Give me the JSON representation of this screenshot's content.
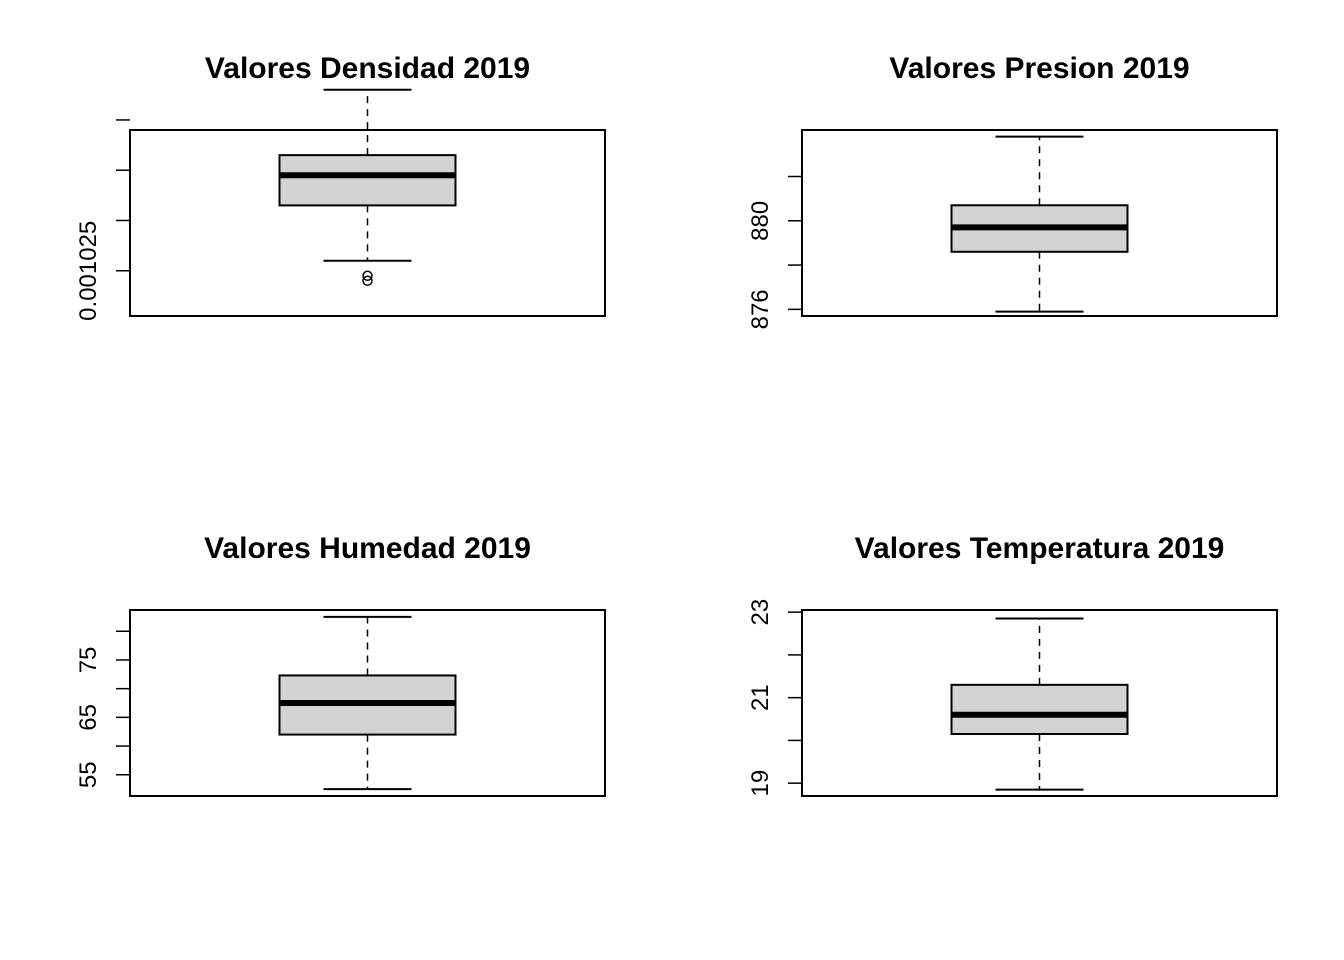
{
  "colors": {
    "box_fill": "#d3d3d3",
    "ink": "#000000",
    "background": "#ffffff"
  },
  "chart_data": [
    {
      "type": "boxplot",
      "title": "Valores Densidad 2019",
      "xlabel": "",
      "ylabel": "",
      "ylim": [
        0.0010241,
        0.0010278
      ],
      "yticks": [
        0.001025,
        0.001026,
        0.001027,
        0.001028
      ],
      "ytick_labels": [
        "0.001025",
        "",
        "",
        ""
      ],
      "whisker_low": 0.0010252,
      "q1": 0.0010263,
      "median": 0.0010269,
      "q3": 0.0010273,
      "whisker_high": 0.0010286,
      "outliers": [
        0.0010249,
        0.0010248
      ],
      "grid": false
    },
    {
      "type": "boxplot",
      "title": "Valores Presion 2019",
      "xlabel": "",
      "ylabel": "",
      "ylim": [
        875.7,
        884.1
      ],
      "yticks": [
        876,
        878,
        880,
        882
      ],
      "ytick_labels": [
        "876",
        "",
        "880",
        ""
      ],
      "whisker_low": 875.9,
      "q1": 878.6,
      "median": 879.7,
      "q3": 880.7,
      "whisker_high": 883.8,
      "outliers": [],
      "grid": false
    },
    {
      "type": "boxplot",
      "title": "Valores Humedad 2019",
      "xlabel": "",
      "ylabel": "",
      "ylim": [
        51.3,
        83.7
      ],
      "yticks": [
        55,
        60,
        65,
        70,
        75,
        80
      ],
      "ytick_labels": [
        "55",
        "",
        "65",
        "",
        "75",
        ""
      ],
      "whisker_low": 52.5,
      "q1": 62.0,
      "median": 67.5,
      "q3": 72.3,
      "whisker_high": 82.5,
      "outliers": [],
      "grid": false
    },
    {
      "type": "boxplot",
      "title": "Valores Temperatura 2019",
      "xlabel": "",
      "ylabel": "",
      "ylim": [
        18.7,
        23.05
      ],
      "yticks": [
        19,
        20,
        21,
        22,
        23
      ],
      "ytick_labels": [
        "19",
        "",
        "21",
        "",
        "23"
      ],
      "whisker_low": 18.85,
      "q1": 20.15,
      "median": 20.6,
      "q3": 21.3,
      "whisker_high": 22.85,
      "outliers": [],
      "grid": false
    }
  ]
}
